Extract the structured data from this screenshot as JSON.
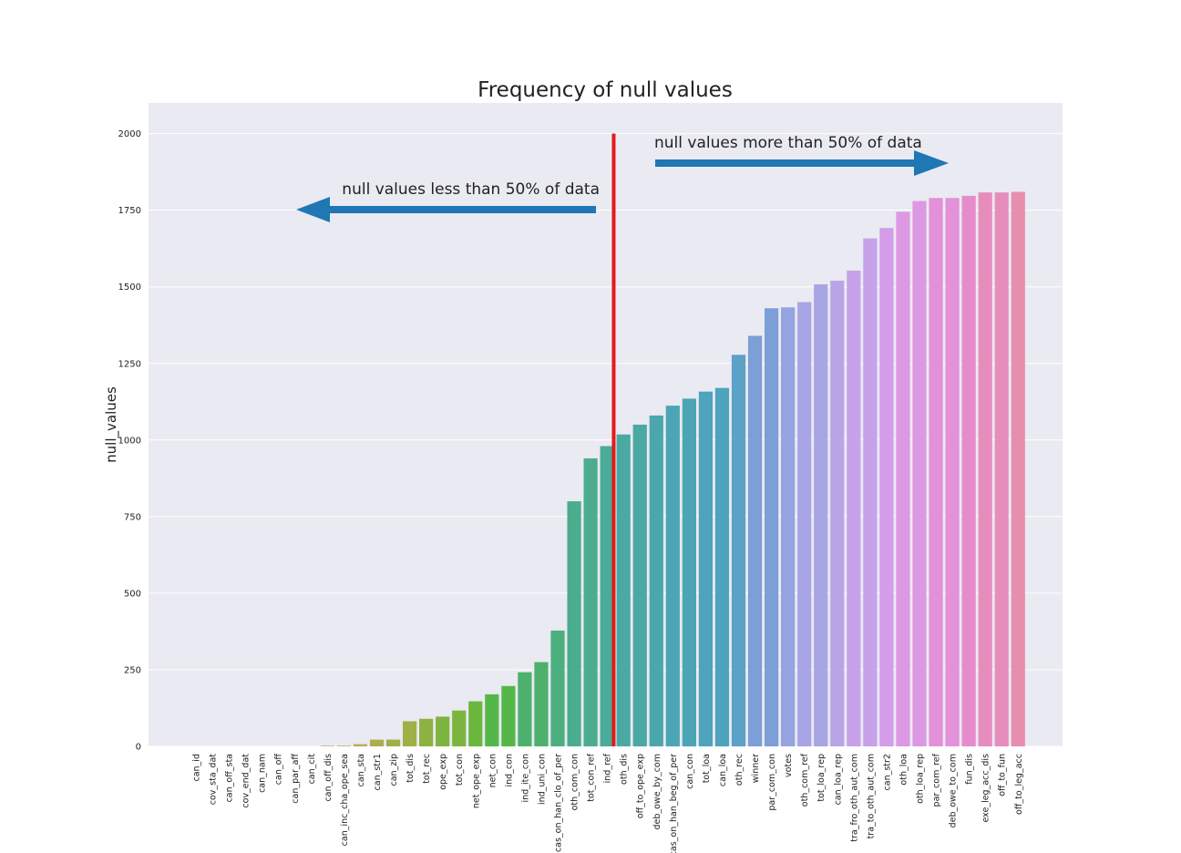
{
  "chart_data": {
    "type": "bar",
    "title": "Frequency of null values",
    "xlabel": "",
    "ylabel": "null_values",
    "ylim": [
      0,
      2100
    ],
    "yticks": [
      0,
      250,
      500,
      750,
      1000,
      1250,
      1500,
      1750,
      2000
    ],
    "grid": true,
    "categories": [
      "can_id",
      "cov_sta_dat",
      "can_off_sta",
      "cov_end_dat",
      "can_nam",
      "can_off",
      "can_par_aff",
      "can_cit",
      "can_off_dis",
      "can_inc_cha_ope_sea",
      "can_sta",
      "can_str1",
      "can_zip",
      "tot_dis",
      "tot_rec",
      "ope_exp",
      "tot_con",
      "net_ope_exp",
      "net_con",
      "ind_con",
      "ind_ite_con",
      "ind_uni_con",
      "cas_on_han_clo_of_per",
      "oth_com_con",
      "tot_con_ref",
      "ind_ref",
      "oth_dis",
      "off_to_ope_exp",
      "deb_owe_by_com",
      "cas_on_han_beg_of_per",
      "can_con",
      "tot_loa",
      "can_loa",
      "oth_rec",
      "winner",
      "par_com_con",
      "votes",
      "oth_com_ref",
      "tot_loa_rep",
      "can_loa_rep",
      "tra_fro_oth_aut_com",
      "tra_to_oth_aut_com",
      "can_str2",
      "oth_loa",
      "oth_loa_rep",
      "par_com_ref",
      "deb_owe_to_com",
      "fun_dis",
      "exe_leg_acc_dis",
      "off_to_fun",
      "off_to_leg_acc"
    ],
    "values": [
      0,
      0,
      0,
      0,
      0,
      0,
      0,
      0,
      2,
      2,
      7,
      22,
      22,
      82,
      90,
      97,
      117,
      147,
      170,
      197,
      242,
      275,
      378,
      800,
      940,
      980,
      1018,
      1050,
      1080,
      1112,
      1135,
      1158,
      1170,
      1278,
      1340,
      1430,
      1433,
      1450,
      1508,
      1520,
      1553,
      1658,
      1692,
      1745,
      1780,
      1790,
      1790,
      1797,
      1808,
      1808,
      1810
    ],
    "colors": [
      "#e88fa0",
      "#e89596",
      "#e79b8b",
      "#e6a07c",
      "#d8a56a",
      "#c8aa5e",
      "#bbac52",
      "#adae4b",
      "#9eb046",
      "#8eb242",
      "#7db43f",
      "#6bb63c",
      "#55b748",
      "#4db06d",
      "#4caf80",
      "#4cad8e",
      "#4bab99",
      "#4ba9a3",
      "#4ba7ac",
      "#4ca5b5",
      "#4ea3bd",
      "#5ba1c8",
      "#7b9fd6",
      "#95a3e0",
      "#a8a5e4",
      "#b9a5e6",
      "#c7a2e8",
      "#d39de9",
      "#dd98e4",
      "#e391d8",
      "#e68ccc",
      "#e78dbd",
      "#e78eae"
    ],
    "annotations": [
      {
        "text": "null values less than 50% of data",
        "arrow": "left"
      },
      {
        "text": "null values more than 50% of data",
        "arrow": "right"
      }
    ],
    "divider_after_category": "ind_ref",
    "arrow_color": "#1f77b4",
    "divider_color": "#e31a1c",
    "background_color": "#eaeaf2"
  }
}
